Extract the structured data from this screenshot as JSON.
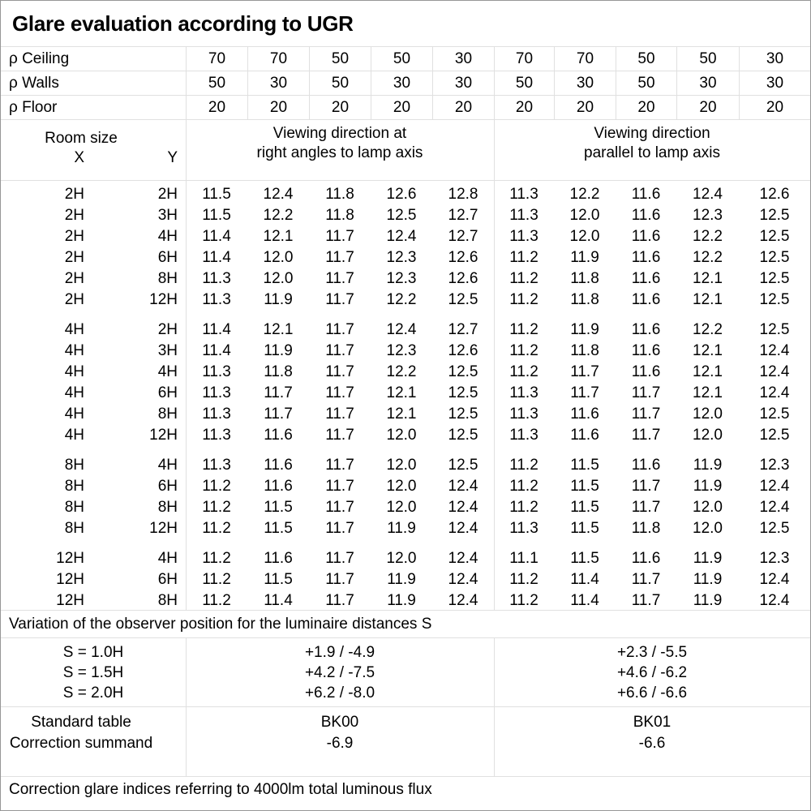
{
  "title": "Glare evaluation according to UGR",
  "reflectance_rows": [
    {
      "label": "ρ Ceiling",
      "values": [
        "70",
        "70",
        "50",
        "50",
        "30",
        "70",
        "70",
        "50",
        "50",
        "30"
      ]
    },
    {
      "label": "ρ Walls",
      "values": [
        "50",
        "30",
        "50",
        "30",
        "30",
        "50",
        "30",
        "50",
        "30",
        "30"
      ]
    },
    {
      "label": "ρ Floor",
      "values": [
        "20",
        "20",
        "20",
        "20",
        "20",
        "20",
        "20",
        "20",
        "20",
        "20"
      ]
    }
  ],
  "header": {
    "room_size": "Room size",
    "x": "X",
    "y": "Y",
    "right_angles_line1": "Viewing direction at",
    "right_angles_line2": "right angles to lamp axis",
    "parallel_line1": "Viewing direction",
    "parallel_line2": "parallel to lamp axis"
  },
  "ugr_groups": [
    {
      "rows": [
        {
          "x": "2H",
          "y": "2H",
          "values": [
            "11.5",
            "12.4",
            "11.8",
            "12.6",
            "12.8",
            "11.3",
            "12.2",
            "11.6",
            "12.4",
            "12.6"
          ]
        },
        {
          "x": "2H",
          "y": "3H",
          "values": [
            "11.5",
            "12.2",
            "11.8",
            "12.5",
            "12.7",
            "11.3",
            "12.0",
            "11.6",
            "12.3",
            "12.5"
          ]
        },
        {
          "x": "2H",
          "y": "4H",
          "values": [
            "11.4",
            "12.1",
            "11.7",
            "12.4",
            "12.7",
            "11.3",
            "12.0",
            "11.6",
            "12.2",
            "12.5"
          ]
        },
        {
          "x": "2H",
          "y": "6H",
          "values": [
            "11.4",
            "12.0",
            "11.7",
            "12.3",
            "12.6",
            "11.2",
            "11.9",
            "11.6",
            "12.2",
            "12.5"
          ]
        },
        {
          "x": "2H",
          "y": "8H",
          "values": [
            "11.3",
            "12.0",
            "11.7",
            "12.3",
            "12.6",
            "11.2",
            "11.8",
            "11.6",
            "12.1",
            "12.5"
          ]
        },
        {
          "x": "2H",
          "y": "12H",
          "values": [
            "11.3",
            "11.9",
            "11.7",
            "12.2",
            "12.5",
            "11.2",
            "11.8",
            "11.6",
            "12.1",
            "12.5"
          ]
        }
      ]
    },
    {
      "rows": [
        {
          "x": "4H",
          "y": "2H",
          "values": [
            "11.4",
            "12.1",
            "11.7",
            "12.4",
            "12.7",
            "11.2",
            "11.9",
            "11.6",
            "12.2",
            "12.5"
          ]
        },
        {
          "x": "4H",
          "y": "3H",
          "values": [
            "11.4",
            "11.9",
            "11.7",
            "12.3",
            "12.6",
            "11.2",
            "11.8",
            "11.6",
            "12.1",
            "12.4"
          ]
        },
        {
          "x": "4H",
          "y": "4H",
          "values": [
            "11.3",
            "11.8",
            "11.7",
            "12.2",
            "12.5",
            "11.2",
            "11.7",
            "11.6",
            "12.1",
            "12.4"
          ]
        },
        {
          "x": "4H",
          "y": "6H",
          "values": [
            "11.3",
            "11.7",
            "11.7",
            "12.1",
            "12.5",
            "11.3",
            "11.7",
            "11.7",
            "12.1",
            "12.4"
          ]
        },
        {
          "x": "4H",
          "y": "8H",
          "values": [
            "11.3",
            "11.7",
            "11.7",
            "12.1",
            "12.5",
            "11.3",
            "11.6",
            "11.7",
            "12.0",
            "12.5"
          ]
        },
        {
          "x": "4H",
          "y": "12H",
          "values": [
            "11.3",
            "11.6",
            "11.7",
            "12.0",
            "12.5",
            "11.3",
            "11.6",
            "11.7",
            "12.0",
            "12.5"
          ]
        }
      ]
    },
    {
      "rows": [
        {
          "x": "8H",
          "y": "4H",
          "values": [
            "11.3",
            "11.6",
            "11.7",
            "12.0",
            "12.5",
            "11.2",
            "11.5",
            "11.6",
            "11.9",
            "12.3"
          ]
        },
        {
          "x": "8H",
          "y": "6H",
          "values": [
            "11.2",
            "11.6",
            "11.7",
            "12.0",
            "12.4",
            "11.2",
            "11.5",
            "11.7",
            "11.9",
            "12.4"
          ]
        },
        {
          "x": "8H",
          "y": "8H",
          "values": [
            "11.2",
            "11.5",
            "11.7",
            "12.0",
            "12.4",
            "11.2",
            "11.5",
            "11.7",
            "12.0",
            "12.4"
          ]
        },
        {
          "x": "8H",
          "y": "12H",
          "values": [
            "11.2",
            "11.5",
            "11.7",
            "11.9",
            "12.4",
            "11.3",
            "11.5",
            "11.8",
            "12.0",
            "12.5"
          ]
        }
      ]
    },
    {
      "rows": [
        {
          "x": "12H",
          "y": "4H",
          "values": [
            "11.2",
            "11.6",
            "11.7",
            "12.0",
            "12.4",
            "11.1",
            "11.5",
            "11.6",
            "11.9",
            "12.3"
          ]
        },
        {
          "x": "12H",
          "y": "6H",
          "values": [
            "11.2",
            "11.5",
            "11.7",
            "11.9",
            "12.4",
            "11.2",
            "11.4",
            "11.7",
            "11.9",
            "12.4"
          ]
        },
        {
          "x": "12H",
          "y": "8H",
          "values": [
            "11.2",
            "11.4",
            "11.7",
            "11.9",
            "12.4",
            "11.2",
            "11.4",
            "11.7",
            "11.9",
            "12.4"
          ]
        }
      ]
    }
  ],
  "variation": {
    "note": "Variation of the observer position for the luminaire distances S",
    "rows": [
      {
        "label": "S = 1.0H",
        "right_angles": "+1.9 / -4.9",
        "parallel": "+2.3 / -5.5"
      },
      {
        "label": "S = 1.5H",
        "right_angles": "+4.2 / -7.5",
        "parallel": "+4.6 / -6.2"
      },
      {
        "label": "S = 2.0H",
        "right_angles": "+6.2 / -8.0",
        "parallel": "+6.6 / -6.6"
      }
    ]
  },
  "correction": {
    "row_labels": [
      "Standard table",
      "Correction summand"
    ],
    "right_angles": [
      "BK00",
      "-6.9"
    ],
    "parallel": [
      "BK01",
      "-6.6"
    ]
  },
  "footer_note": "Correction glare indices referring to 4000lm total luminous flux",
  "colors": {
    "background": "#ffffff",
    "text": "#000000",
    "grid_line": "#e0e0e0",
    "outer_border": "#979797"
  }
}
